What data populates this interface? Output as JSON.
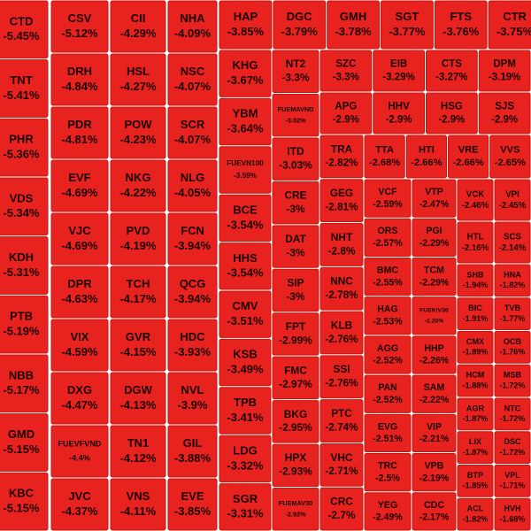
{
  "tiles": [
    {
      "ticker": "CTD",
      "change": "-5.45%"
    },
    {
      "ticker": "TNT",
      "change": "-5.41%"
    },
    {
      "ticker": "PHR",
      "change": "-5.36%"
    },
    {
      "ticker": "VDS",
      "change": "-5.34%"
    },
    {
      "ticker": "KDH",
      "change": "-5.31%"
    },
    {
      "ticker": "PTB",
      "change": "-5.19%"
    },
    {
      "ticker": "NBB",
      "change": "-5.17%"
    },
    {
      "ticker": "GMD",
      "change": "-5.15%"
    },
    {
      "ticker": "KBC",
      "change": "-5.15%"
    },
    {
      "ticker": "CSV",
      "change": "-5.12%"
    },
    {
      "ticker": "DRH",
      "change": "-4.84%"
    },
    {
      "ticker": "PDR",
      "change": "-4.81%"
    },
    {
      "ticker": "EVF",
      "change": "-4.69%"
    },
    {
      "ticker": "VJC",
      "change": "-4.69%"
    },
    {
      "ticker": "DPR",
      "change": "-4.63%"
    },
    {
      "ticker": "VIX",
      "change": "-4.59%"
    },
    {
      "ticker": "DXG",
      "change": "-4.47%"
    },
    {
      "ticker": "FUEVFVND",
      "change": "-4.4%"
    },
    {
      "ticker": "JVC",
      "change": "-4.37%"
    },
    {
      "ticker": "CII",
      "change": "-4.29%"
    },
    {
      "ticker": "HSL",
      "change": "-4.27%"
    },
    {
      "ticker": "POW",
      "change": "-4.23%"
    },
    {
      "ticker": "NKG",
      "change": "-4.22%"
    },
    {
      "ticker": "PVD",
      "change": "-4.19%"
    },
    {
      "ticker": "TCH",
      "change": "-4.17%"
    },
    {
      "ticker": "GVR",
      "change": "-4.15%"
    },
    {
      "ticker": "DGW",
      "change": "-4.13%"
    },
    {
      "ticker": "TN1",
      "change": "-4.12%"
    },
    {
      "ticker": "VNS",
      "change": "-4.11%"
    },
    {
      "ticker": "NHA",
      "change": "-4.09%"
    },
    {
      "ticker": "NSC",
      "change": "-4.07%"
    },
    {
      "ticker": "SCR",
      "change": "-4.07%"
    },
    {
      "ticker": "NLG",
      "change": "-4.05%"
    },
    {
      "ticker": "FCN",
      "change": "-3.94%"
    },
    {
      "ticker": "QCG",
      "change": "-3.94%"
    },
    {
      "ticker": "HDC",
      "change": "-3.93%"
    },
    {
      "ticker": "NVL",
      "change": "-3.9%"
    },
    {
      "ticker": "GIL",
      "change": "-3.88%"
    },
    {
      "ticker": "EVE",
      "change": "-3.85%"
    },
    {
      "ticker": "HAP",
      "change": "-3.85%"
    },
    {
      "ticker": "DGC",
      "change": "-3.79%"
    },
    {
      "ticker": "GMH",
      "change": "-3.78%"
    },
    {
      "ticker": "SGT",
      "change": "-3.77%"
    },
    {
      "ticker": "FTS",
      "change": "-3.76%"
    },
    {
      "ticker": "CTR",
      "change": "-3.75%"
    },
    {
      "ticker": "KHG",
      "change": "-3.67%"
    },
    {
      "ticker": "YBM",
      "change": "-3.64%"
    },
    {
      "ticker": "FUEVN100",
      "change": "-3.59%"
    },
    {
      "ticker": "BCE",
      "change": "-3.54%"
    },
    {
      "ticker": "HHS",
      "change": "-3.54%"
    },
    {
      "ticker": "CMV",
      "change": "-3.51%"
    },
    {
      "ticker": "KSB",
      "change": "-3.49%"
    },
    {
      "ticker": "TPB",
      "change": "-3.41%"
    },
    {
      "ticker": "LDG",
      "change": "-3.32%"
    },
    {
      "ticker": "SGR",
      "change": "-3.31%"
    },
    {
      "ticker": "NT2",
      "change": "-3.3%"
    },
    {
      "ticker": "FUEMAVND",
      "change": "-3.02%"
    },
    {
      "ticker": "ITD",
      "change": "-3.03%"
    },
    {
      "ticker": "CRE",
      "change": "-3%"
    },
    {
      "ticker": "DAT",
      "change": "-3%"
    },
    {
      "ticker": "SIP",
      "change": "-3%"
    },
    {
      "ticker": "FPT",
      "change": "-2.99%"
    },
    {
      "ticker": "FMC",
      "change": "-2.97%"
    },
    {
      "ticker": "BKG",
      "change": "-2.95%"
    },
    {
      "ticker": "HPX",
      "change": "-2.93%"
    },
    {
      "ticker": "FUEMAV30",
      "change": "-2.92%"
    },
    {
      "ticker": "SZC",
      "change": "-3.3%"
    },
    {
      "ticker": "EIB",
      "change": "-3.29%"
    },
    {
      "ticker": "CTS",
      "change": "-3.27%"
    },
    {
      "ticker": "DPM",
      "change": "-3.19%"
    },
    {
      "ticker": "APG",
      "change": "-2.9%"
    },
    {
      "ticker": "HHV",
      "change": "-2.9%"
    },
    {
      "ticker": "HSG",
      "change": "-2.9%"
    },
    {
      "ticker": "SJS",
      "change": "-2.9%"
    },
    {
      "ticker": "TRA",
      "change": "-2.82%"
    },
    {
      "ticker": "GEG",
      "change": "-2.81%"
    },
    {
      "ticker": "NHT",
      "change": "-2.8%"
    },
    {
      "ticker": "NNC",
      "change": "-2.78%"
    },
    {
      "ticker": "KLB",
      "change": "-2.76%"
    },
    {
      "ticker": "SSI",
      "change": "-2.76%"
    },
    {
      "ticker": "PTC",
      "change": "-2.74%"
    },
    {
      "ticker": "VHC",
      "change": "-2.71%"
    },
    {
      "ticker": "CRC",
      "change": "-2.7%"
    },
    {
      "ticker": "TTA",
      "change": "-2.68%"
    },
    {
      "ticker": "HTI",
      "change": "-2.66%"
    },
    {
      "ticker": "VRE",
      "change": "-2.66%"
    },
    {
      "ticker": "VVS",
      "change": "-2.65%"
    },
    {
      "ticker": "VCF",
      "change": "-2.59%"
    },
    {
      "ticker": "ORS",
      "change": "-2.57%"
    },
    {
      "ticker": "BMC",
      "change": "-2.55%"
    },
    {
      "ticker": "HAG",
      "change": "-2.53%"
    },
    {
      "ticker": "AGG",
      "change": "-2.52%"
    },
    {
      "ticker": "PAN",
      "change": "-2.52%"
    },
    {
      "ticker": "EVG",
      "change": "-2.51%"
    },
    {
      "ticker": "TRC",
      "change": "-2.5%"
    },
    {
      "ticker": "YEG",
      "change": "-2.49%"
    },
    {
      "ticker": "VTP",
      "change": "-2.47%"
    },
    {
      "ticker": "PGI",
      "change": "-2.29%"
    },
    {
      "ticker": "TCM",
      "change": "-2.29%"
    },
    {
      "ticker": "FUEKIV30",
      "change": "-2.26%"
    },
    {
      "ticker": "HHP",
      "change": "-2.26%"
    },
    {
      "ticker": "SAM",
      "change": "-2.22%"
    },
    {
      "ticker": "VIP",
      "change": "-2.21%"
    },
    {
      "ticker": "VPB",
      "change": "-2.19%"
    },
    {
      "ticker": "CDC",
      "change": "-2.17%"
    },
    {
      "ticker": "VCK",
      "change": "-2.46%"
    },
    {
      "ticker": "VPI",
      "change": "-2.45%"
    },
    {
      "ticker": "HTL",
      "change": "-2.16%"
    },
    {
      "ticker": "SCS",
      "change": "-2.14%"
    },
    {
      "ticker": "SHB",
      "change": "-1.94%"
    },
    {
      "ticker": "BIC",
      "change": "-1.91%"
    },
    {
      "ticker": "CMX",
      "change": "-1.89%"
    },
    {
      "ticker": "HCM",
      "change": "-1.88%"
    },
    {
      "ticker": "AGR",
      "change": "-1.87%"
    },
    {
      "ticker": "LIX",
      "change": "-1.87%"
    },
    {
      "ticker": "BTP",
      "change": "-1.85%"
    },
    {
      "ticker": "ACL",
      "change": "-1.82%"
    },
    {
      "ticker": "HNA",
      "change": "-1.82%"
    },
    {
      "ticker": "TVB",
      "change": "-1.77%"
    },
    {
      "ticker": "OCB",
      "change": "-1.76%"
    },
    {
      "ticker": "MSB",
      "change": "-1.72%"
    },
    {
      "ticker": "NTC",
      "change": "-1.72%"
    },
    {
      "ticker": "DSC",
      "change": "-1.72%"
    },
    {
      "ticker": "VPL",
      "change": "-1.71%"
    },
    {
      "ticker": "HVH",
      "change": "-1.68%"
    }
  ]
}
